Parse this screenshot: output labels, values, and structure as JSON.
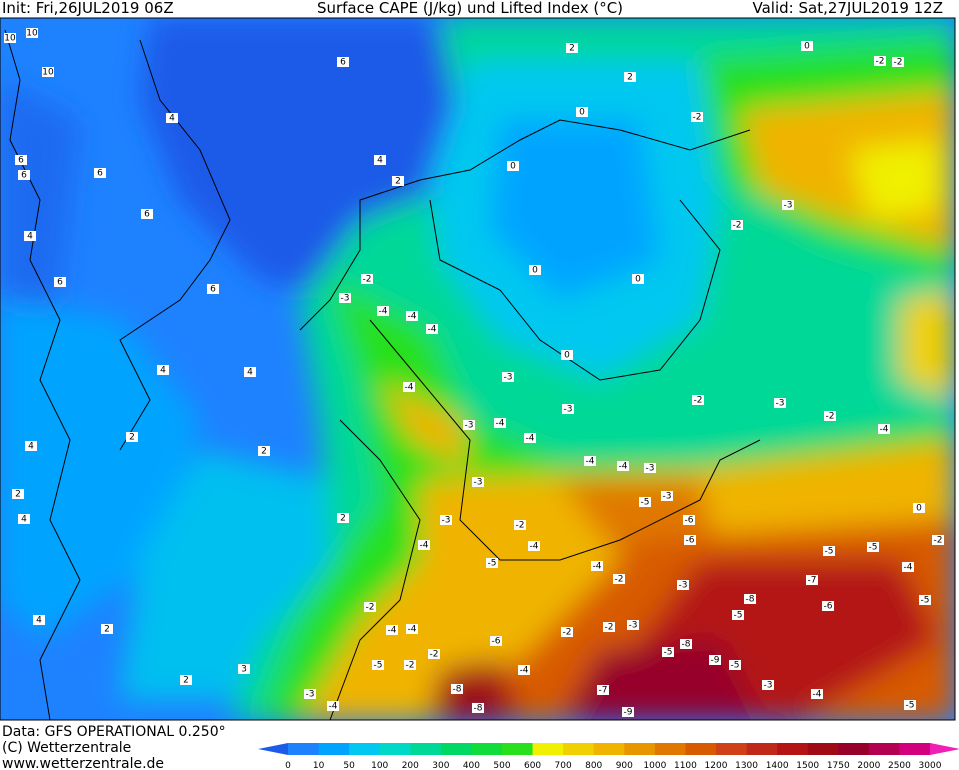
{
  "header": {
    "init": "Init: Fri,26JUL2019 06Z",
    "title": "Surface CAPE (J/kg) und Lifted Index (°C)",
    "valid": "Valid: Sat,27JUL2019 12Z"
  },
  "footer": {
    "data": "Data: GFS OPERATIONAL 0.250°",
    "copyright": "(C) Wetterzentrale",
    "url": "www.wetterzentrale.de"
  },
  "colorbar": {
    "labels": [
      0,
      10,
      50,
      100,
      200,
      300,
      400,
      500,
      600,
      700,
      800,
      900,
      1000,
      1100,
      1200,
      1300,
      1400,
      1500,
      1750,
      2000,
      2500,
      3000
    ],
    "colors": [
      "#1c5ae8",
      "#1e82ff",
      "#00a4ff",
      "#00c8f0",
      "#00d8c8",
      "#00d898",
      "#00d864",
      "#10dc3c",
      "#28e01c",
      "#f0f000",
      "#f0d000",
      "#f0b400",
      "#e89600",
      "#e07800",
      "#d85a00",
      "#d04018",
      "#c02818",
      "#b41414",
      "#a00a14",
      "#96002a",
      "#b40050",
      "#d2007c",
      "#f020b4"
    ]
  },
  "contour_labels": [
    10,
    10,
    10,
    6,
    4,
    6,
    6,
    4,
    2,
    6,
    6,
    4,
    4,
    2,
    2,
    2,
    2,
    2,
    0,
    0,
    0,
    0,
    0,
    -2,
    -3,
    -2,
    -2,
    -3,
    -4,
    -4,
    -4,
    -4,
    -3,
    -3,
    -2,
    -3,
    -2,
    -4,
    -3,
    -4,
    -4,
    -4,
    -4,
    -3,
    -5,
    -6,
    -6,
    -3,
    -3,
    -3,
    -2,
    -4,
    -4,
    -5,
    -4,
    -2,
    -3,
    -7,
    -6,
    -5,
    -4,
    -5,
    -5,
    -8,
    -5,
    -5,
    -8,
    -9,
    -5,
    -9,
    -7,
    -8,
    -8,
    -4,
    -2,
    -5,
    -3,
    -4,
    -2,
    -4,
    -4,
    -2,
    -6,
    -2,
    -2,
    -3,
    2,
    2,
    3,
    4,
    4,
    2,
    4,
    4,
    6,
    6,
    -5,
    -4,
    -3,
    0,
    -2,
    -2,
    -2,
    0
  ]
}
